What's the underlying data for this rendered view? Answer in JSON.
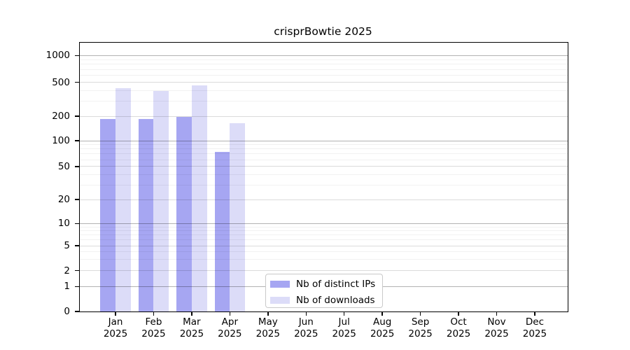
{
  "chart_data": {
    "type": "bar",
    "title": "crisprBowtie 2025",
    "year": "2025",
    "months": [
      "Jan",
      "Feb",
      "Mar",
      "Apr",
      "May",
      "Jun",
      "Jul",
      "Aug",
      "Sep",
      "Oct",
      "Nov",
      "Dec"
    ],
    "series": [
      {
        "name": "Nb of distinct IPs",
        "color": "#a6a6f2",
        "values": [
          185,
          185,
          196,
          74,
          null,
          null,
          null,
          null,
          null,
          null,
          null,
          null
        ]
      },
      {
        "name": "Nb of downloads",
        "color": "#dcdcf8",
        "values": [
          430,
          395,
          460,
          165,
          null,
          null,
          null,
          null,
          null,
          null,
          null,
          null
        ]
      }
    ],
    "yticks": [
      0,
      1,
      2,
      5,
      10,
      20,
      50,
      100,
      200,
      500,
      1000
    ],
    "ylim": [
      0,
      1400
    ],
    "xlabel": "",
    "ylabel": "",
    "scale": "log above 1 with compressed linear segment from 0 to 1",
    "grid": "horizontal major, mid and minor gridlines drawn over bars",
    "legend_position": "inside lower-center of plot"
  }
}
